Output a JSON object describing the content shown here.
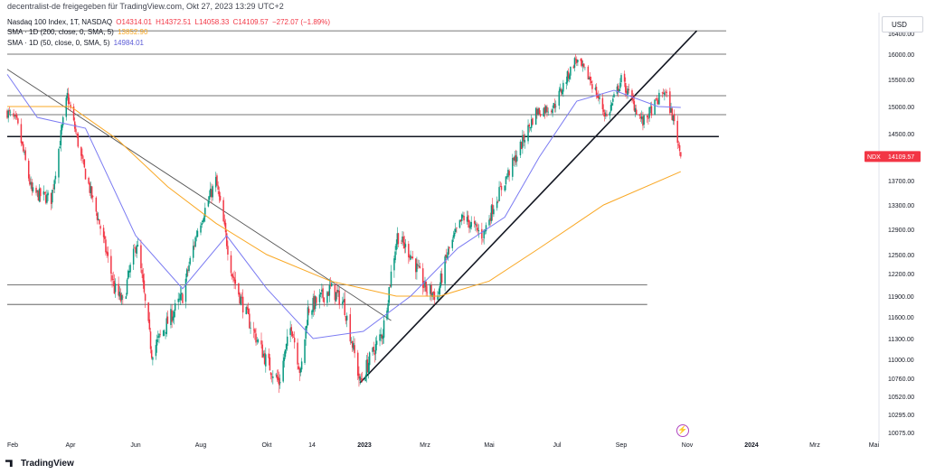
{
  "header": {
    "shared_by": "decentralist-de freigegeben für TradingView.com, Okt 27, 2023 13:29 UTC+2",
    "symbol": "Nasdaq 100 Index, 1T, NASDAQ",
    "open": "O14314.01",
    "high": "H14372.51",
    "low": "L14058.33",
    "close": "C14109.57",
    "change": "−272.07 (−1.89%)",
    "sma200_label": "SMA · 1D (200, close, 0, SMA, 5)",
    "sma200_value": "13852.90",
    "sma50_label": "SMA · 1D (50, close, 0, SMA, 5)",
    "sma50_value": "14984.01"
  },
  "currency": "USD",
  "brand": "TradingView",
  "price_tag": {
    "symbol": "NDX",
    "value": "14109.57"
  },
  "colors": {
    "up": "#089981",
    "down": "#f23645",
    "sma200": "#f9a825",
    "sma50": "#7b7bf2",
    "tag": "#f23645"
  },
  "chart_data": {
    "type": "candlestick",
    "title": "Nasdaq 100 Index, 1T, NASDAQ",
    "y_axis_labels": [
      "16400.00",
      "16000.00",
      "15500.00",
      "15000.00",
      "14500.00",
      "13700.00",
      "13300.00",
      "12900.00",
      "12500.00",
      "12200.00",
      "11900.00",
      "11600.00",
      "11300.00",
      "11000.00",
      "10760.00",
      "10520.00",
      "10295.00",
      "10075.00"
    ],
    "x_axis_labels": [
      "Feb",
      "Apr",
      "Jun",
      "Aug",
      "Okt",
      "14",
      "2023",
      "Mrz",
      "Mai",
      "Jul",
      "Sep",
      "Nov",
      "2024",
      "Mrz",
      "Mai"
    ],
    "x_range": [
      "2022-02-01",
      "2024-05-10"
    ],
    "last_price": 14109.57,
    "close_series": [
      [
        "2022-02-01",
        14900
      ],
      [
        "2022-02-10",
        14700
      ],
      [
        "2022-02-24",
        13500
      ],
      [
        "2022-03-14",
        13400
      ],
      [
        "2022-03-29",
        15200
      ],
      [
        "2022-04-12",
        14000
      ],
      [
        "2022-04-28",
        13000
      ],
      [
        "2022-05-12",
        12000
      ],
      [
        "2022-05-20",
        11800
      ],
      [
        "2022-06-02",
        12700
      ],
      [
        "2022-06-16",
        11100
      ],
      [
        "2022-06-30",
        11500
      ],
      [
        "2022-07-15",
        11900
      ],
      [
        "2022-07-29",
        12900
      ],
      [
        "2022-08-15",
        13700
      ],
      [
        "2022-08-30",
        12200
      ],
      [
        "2022-09-13",
        11600
      ],
      [
        "2022-09-30",
        11000
      ],
      [
        "2022-10-13",
        10700
      ],
      [
        "2022-10-25",
        11500
      ],
      [
        "2022-11-03",
        10800
      ],
      [
        "2022-11-10",
        11700
      ],
      [
        "2022-12-01",
        12000
      ],
      [
        "2022-12-13",
        11800
      ],
      [
        "2022-12-28",
        10700
      ],
      [
        "2023-01-06",
        11000
      ],
      [
        "2023-01-19",
        11400
      ],
      [
        "2023-02-02",
        12800
      ],
      [
        "2023-02-15",
        12500
      ],
      [
        "2023-03-01",
        12000
      ],
      [
        "2023-03-13",
        11900
      ],
      [
        "2023-03-22",
        12500
      ],
      [
        "2023-04-06",
        13100
      ],
      [
        "2023-04-25",
        12800
      ],
      [
        "2023-05-05",
        13300
      ],
      [
        "2023-05-25",
        14100
      ],
      [
        "2023-06-12",
        14900
      ],
      [
        "2023-06-28",
        15000
      ],
      [
        "2023-07-19",
        15900
      ],
      [
        "2023-08-02",
        15500
      ],
      [
        "2023-08-18",
        14800
      ],
      [
        "2023-09-01",
        15500
      ],
      [
        "2023-09-21",
        14700
      ],
      [
        "2023-10-11",
        15300
      ],
      [
        "2023-10-20",
        14700
      ],
      [
        "2023-10-26",
        14109.57
      ]
    ],
    "series": [
      {
        "name": "SMA · 1D (200, close, 0, SMA, 5)",
        "points": [
          [
            "2022-02-01",
            15000
          ],
          [
            "2022-04-01",
            15000
          ],
          [
            "2022-05-15",
            14400
          ],
          [
            "2022-07-01",
            13600
          ],
          [
            "2022-08-15",
            13000
          ],
          [
            "2022-10-01",
            12500
          ],
          [
            "2022-12-01",
            12100
          ],
          [
            "2023-02-01",
            11900
          ],
          [
            "2023-03-15",
            11900
          ],
          [
            "2023-05-01",
            12100
          ],
          [
            "2023-06-15",
            12600
          ],
          [
            "2023-08-15",
            13300
          ],
          [
            "2023-10-26",
            13852.9
          ]
        ]
      },
      {
        "name": "SMA · 1D (50, close, 0, SMA, 5)",
        "points": [
          [
            "2022-02-01",
            15600
          ],
          [
            "2022-03-01",
            14800
          ],
          [
            "2022-04-15",
            14600
          ],
          [
            "2022-06-01",
            12800
          ],
          [
            "2022-07-15",
            12000
          ],
          [
            "2022-08-25",
            12800
          ],
          [
            "2022-10-01",
            12000
          ],
          [
            "2022-11-15",
            11300
          ],
          [
            "2022-12-31",
            11400
          ],
          [
            "2023-02-15",
            11900
          ],
          [
            "2023-04-01",
            12600
          ],
          [
            "2023-05-15",
            13100
          ],
          [
            "2023-06-15",
            14100
          ],
          [
            "2023-07-20",
            15100
          ],
          [
            "2023-08-25",
            15300
          ],
          [
            "2023-10-05",
            15000
          ],
          [
            "2023-10-26",
            14984.01
          ]
        ]
      }
    ],
    "horizontal_lines": [
      {
        "y": 16450,
        "x_start": "2022-02-01",
        "x_end": "2023-12-08"
      },
      {
        "y": 16000,
        "x_start": "2022-02-01",
        "x_end": "2023-12-08"
      },
      {
        "y": 15200,
        "x_start": "2022-02-01",
        "x_end": "2023-12-08"
      },
      {
        "y": 14850,
        "x_start": "2022-02-01",
        "x_end": "2023-12-08"
      },
      {
        "y": 14450,
        "x_start": "2022-02-01",
        "x_end": "2023-12-01"
      },
      {
        "y": 12050,
        "x_start": "2022-02-01",
        "x_end": "2023-09-25"
      },
      {
        "y": 11780,
        "x_start": "2022-02-01",
        "x_end": "2023-09-25"
      }
    ],
    "trend_lines": [
      {
        "from": [
          "2022-02-01",
          15700
        ],
        "to": [
          "2023-01-27",
          11550
        ]
      },
      {
        "from": [
          "2022-12-28",
          10700
        ],
        "to": [
          "2023-11-10",
          16450
        ]
      }
    ]
  }
}
